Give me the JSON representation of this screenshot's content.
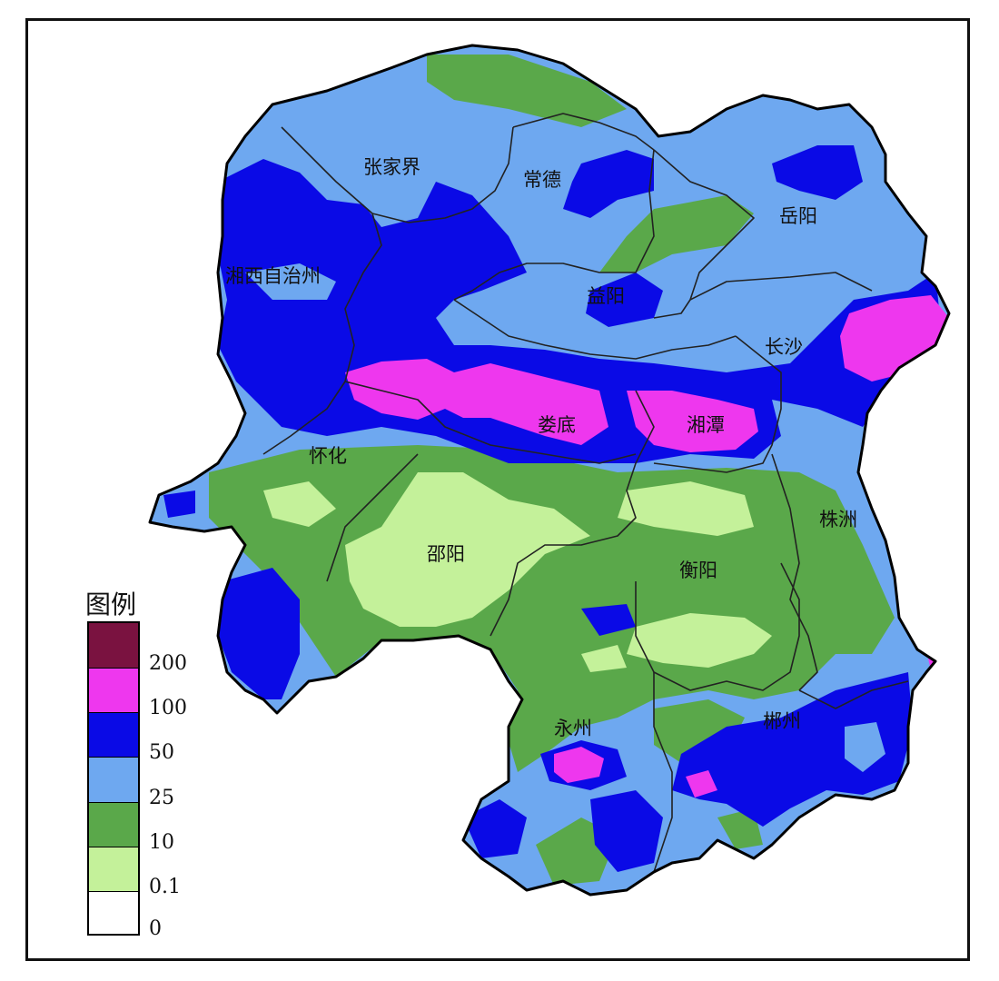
{
  "colors": {
    "c_200": "#7a1240",
    "c_100": "#ee37ee",
    "c_50": "#0a0ae6",
    "c_25": "#6ea8f0",
    "c_10": "#5aa84a",
    "c_0_1": "#c4f19a",
    "c_0": "#ffffff",
    "boundary": "#222222"
  },
  "cities": {
    "zhangjiajie": "张家界",
    "changde": "常德",
    "yueyang": "岳阳",
    "xiangxi": "湘西自治州",
    "yiyang": "益阳",
    "changsha": "长沙",
    "loudi": "娄底",
    "xiangtan": "湘潭",
    "huaihua": "怀化",
    "zhuzhou": "株洲",
    "shaoyang": "邵阳",
    "hengyang": "衡阳",
    "yongzhou": "永州",
    "chenzhou": "郴州"
  },
  "legend": {
    "title": "图例",
    "labels": [
      "200",
      "100",
      "50",
      "25",
      "10",
      "0.1",
      "0"
    ]
  }
}
